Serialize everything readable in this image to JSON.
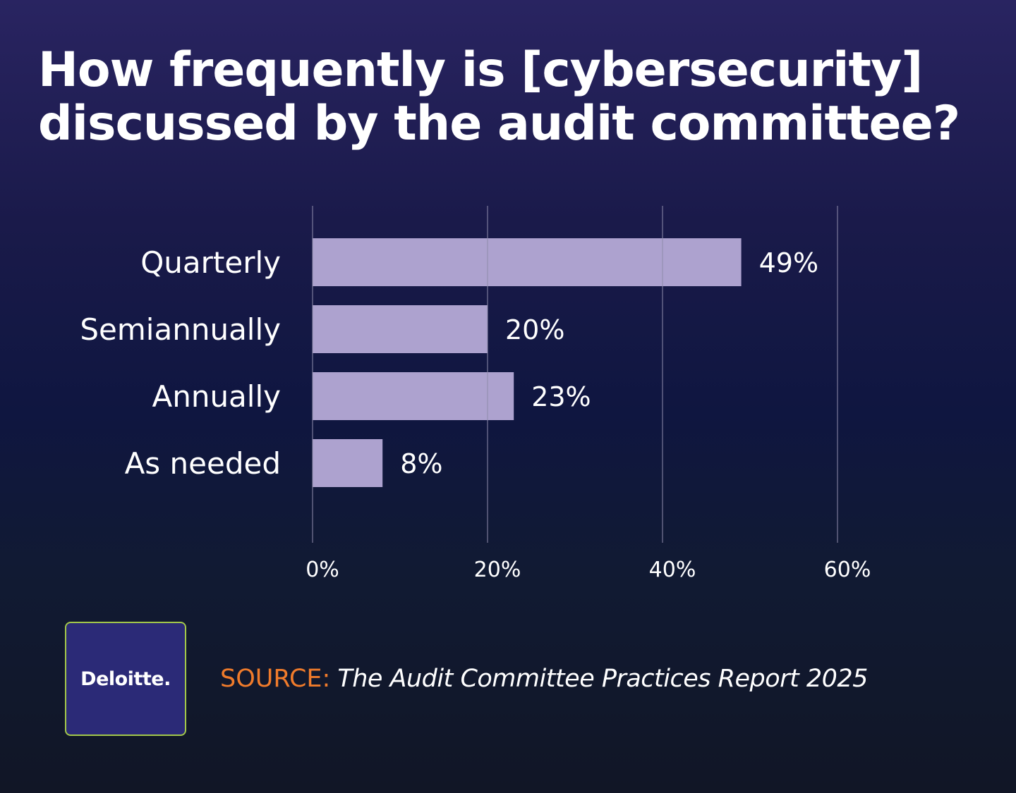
{
  "title": {
    "line1": "How frequently is [cybersecurity]",
    "line2": "discussed by the audit committee?"
  },
  "chart_data": {
    "type": "bar",
    "orientation": "horizontal",
    "categories": [
      "Quarterly",
      "Semiannually",
      "Annually",
      "As needed"
    ],
    "values": [
      49,
      20,
      23,
      8
    ],
    "value_labels": [
      "49%",
      "20%",
      "23%",
      "8%"
    ],
    "xlim": [
      0,
      60
    ],
    "x_ticks": [
      0,
      20,
      40,
      60
    ],
    "x_tick_labels": [
      "0%",
      "20%",
      "40%",
      "60%"
    ],
    "grid": "vertical",
    "bar_color": "#ada2cf",
    "grid_color": "#8f8cab"
  },
  "logo": {
    "text": "Deloitte.",
    "background": "#2b2a77",
    "border_color": "#a3c84a"
  },
  "source": {
    "label": "SOURCE:",
    "text": "The Audit Committee Practices Report 2025",
    "label_color": "#f07b2b"
  }
}
